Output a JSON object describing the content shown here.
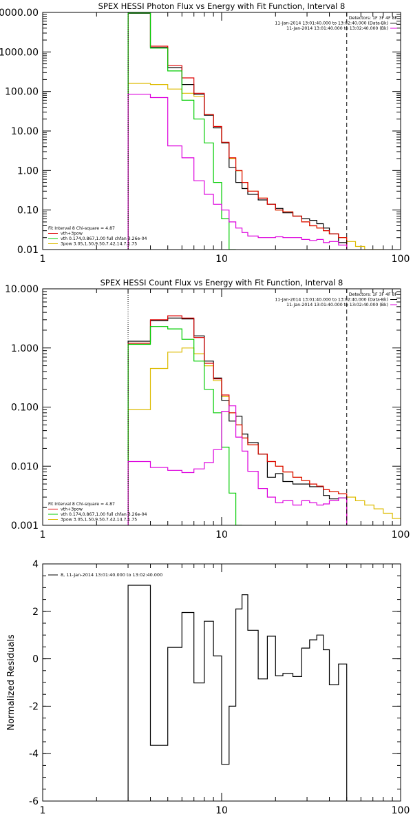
{
  "chart_data": [
    {
      "type": "line",
      "title": "SPEX HESSI Photon Flux vs Energy with Fit Function, Interval 8",
      "x_scale": "log",
      "y_scale": "log",
      "xlim": [
        1,
        100
      ],
      "ylim": [
        0.01,
        10000
      ],
      "x_ticks": [
        {
          "v": 1,
          "label": "1"
        },
        {
          "v": 10,
          "label": "10"
        },
        {
          "v": 100,
          "label": "100"
        }
      ],
      "y_ticks": [
        {
          "v": 0.01,
          "label": "0.01"
        },
        {
          "v": 0.1,
          "label": "0.10"
        },
        {
          "v": 1,
          "label": "1.00"
        },
        {
          "v": 10,
          "label": "10.00"
        },
        {
          "v": 100,
          "label": "100.00"
        },
        {
          "v": 1000,
          "label": "1000.00"
        },
        {
          "v": 10000,
          "label": "10000.00"
        }
      ],
      "top_legend": [
        {
          "text": "Detectors: 1F 3F 4F 8F",
          "color": "#000000"
        },
        {
          "text": "11-Jan-2014 13:01:40.000 to 13:02:40.000 (Data-Bk)",
          "color": "#000000"
        },
        {
          "text": "11-Jan-2014 13:01:40.000 to 13:02:40.000 (Bk)",
          "color": "#dd00dd"
        }
      ],
      "fit_legend": [
        {
          "text": "Fit Interval 8   Chi-square = 4.87",
          "color": "#000000"
        },
        {
          "text": "vth+3pow",
          "color": "#dd0000"
        },
        {
          "text": "vth 0.174,0.867,1.00  full chfan 3.26e-04",
          "color": "#00cc00"
        },
        {
          "text": "3pow 3.05,1.50,9.50,7.42,14.7,1.75",
          "color": "#ddbb00"
        }
      ],
      "vlines": [
        {
          "x": 3.0,
          "style": "dotted"
        },
        {
          "x": 50,
          "style": "dashed"
        }
      ],
      "edges": [
        3,
        4,
        5,
        6,
        7,
        8,
        9,
        10,
        11,
        12,
        13,
        14,
        16,
        18,
        20,
        22,
        25,
        28,
        31,
        34,
        37,
        40,
        45,
        50,
        56,
        63,
        71,
        80
      ],
      "series": [
        {
          "color": "#ddbb00",
          "values": [
            160,
            150,
            115,
            90,
            75,
            26,
            13,
            5,
            2.0,
            0.98,
            0.5,
            0.3,
            0.2,
            0.14,
            0.1,
            0.09,
            0.07,
            0.05,
            0.04,
            0.035,
            0.03,
            0.025,
            0.02,
            0.016,
            0.012,
            0.01,
            0.01
          ]
        },
        {
          "color": "#000000",
          "values": [
            9500,
            1300,
            400,
            150,
            85,
            25,
            12,
            5,
            1.2,
            0.5,
            0.35,
            0.25,
            0.18,
            0.14,
            0.11,
            0.085,
            0.07,
            0.06,
            0.055,
            0.045,
            0.035,
            0.025,
            0.015,
            null,
            null,
            null,
            null
          ]
        },
        {
          "color": "#dd0000",
          "values": [
            9800,
            1400,
            450,
            220,
            90,
            26,
            13,
            5.2,
            2.1,
            1.0,
            0.5,
            0.3,
            0.2,
            0.14,
            0.1,
            0.09,
            0.07,
            0.05,
            0.04,
            0.035,
            0.03,
            0.025,
            0.02,
            null,
            null,
            null,
            null
          ]
        },
        {
          "color": "#00cc00",
          "values": [
            9700,
            1250,
            330,
            60,
            20,
            5,
            0.5,
            0.06,
            0.01,
            null,
            null,
            null,
            null,
            null,
            null,
            null,
            null,
            null,
            null,
            null,
            null,
            null,
            null,
            null,
            null,
            null,
            null
          ]
        },
        {
          "color": "#dd00dd",
          "values": [
            85,
            70,
            4.2,
            2.1,
            0.55,
            0.25,
            0.14,
            0.1,
            0.05,
            0.035,
            0.027,
            0.022,
            0.02,
            0.02,
            0.021,
            0.02,
            0.02,
            0.018,
            0.017,
            0.018,
            0.015,
            0.016,
            0.013,
            null,
            null,
            null,
            null
          ]
        }
      ]
    },
    {
      "type": "line",
      "title": "SPEX HESSI Count Flux vs Energy with Fit Function, Interval 8",
      "x_scale": "log",
      "y_scale": "log",
      "xlim": [
        1,
        100
      ],
      "ylim": [
        0.001,
        10
      ],
      "x_ticks": [
        {
          "v": 1,
          "label": "1"
        },
        {
          "v": 10,
          "label": "10"
        },
        {
          "v": 100,
          "label": "100"
        }
      ],
      "y_ticks": [
        {
          "v": 0.001,
          "label": "0.001"
        },
        {
          "v": 0.01,
          "label": "0.010"
        },
        {
          "v": 0.1,
          "label": "0.100"
        },
        {
          "v": 1,
          "label": "1.000"
        },
        {
          "v": 10,
          "label": "10.000"
        }
      ],
      "top_legend": [
        {
          "text": "Detectors: 1F 3F 4F 8F",
          "color": "#000000"
        },
        {
          "text": "11-Jan-2014 13:01:40.000 to 13:02:40.000 (Data-Bk)",
          "color": "#000000"
        },
        {
          "text": "11-Jan-2014 13:01:40.000 to 13:02:40.000 (Bk)",
          "color": "#dd00dd"
        }
      ],
      "fit_legend": [
        {
          "text": "Fit Interval 8   Chi-square = 4.87",
          "color": "#000000"
        },
        {
          "text": "vth+3pow",
          "color": "#dd0000"
        },
        {
          "text": "vth 0.174,0.867,1.00  full chfan 3.26e-04",
          "color": "#00cc00"
        },
        {
          "text": "3pow 3.05,1.50,9.50,7.42,14.7,1.75",
          "color": "#ddbb00"
        }
      ],
      "vlines": [
        {
          "x": 3.0,
          "style": "dotted"
        },
        {
          "x": 50,
          "style": "dashed"
        }
      ],
      "edges": [
        3,
        4,
        5,
        6,
        7,
        8,
        9,
        10,
        11,
        12,
        13,
        14,
        16,
        18,
        20,
        22,
        25,
        28,
        31,
        34,
        37,
        40,
        45,
        50,
        56,
        63,
        71,
        80,
        90,
        100
      ],
      "series": [
        {
          "color": "#ddbb00",
          "values": [
            0.09,
            0.45,
            0.85,
            1.0,
            0.8,
            0.5,
            0.28,
            0.15,
            0.08,
            0.05,
            0.03,
            0.023,
            0.016,
            0.012,
            0.01,
            0.008,
            0.0065,
            0.0057,
            0.005,
            0.0046,
            0.004,
            0.0037,
            0.0034,
            0.003,
            0.0026,
            0.0022,
            0.0019,
            0.0016,
            0.0013
          ]
        },
        {
          "color": "#000000",
          "values": [
            1.3,
            2.9,
            3.2,
            3.1,
            1.6,
            0.6,
            0.31,
            0.13,
            0.058,
            0.07,
            0.035,
            0.025,
            0.016,
            0.0065,
            0.0075,
            0.0055,
            0.005,
            0.005,
            0.0045,
            0.0045,
            0.0032,
            0.0028,
            0.0029,
            null,
            null,
            null,
            null,
            null,
            null
          ]
        },
        {
          "color": "#dd0000",
          "values": [
            1.2,
            3.0,
            3.5,
            3.2,
            1.5,
            0.55,
            0.3,
            0.16,
            0.08,
            0.05,
            0.03,
            0.023,
            0.016,
            0.012,
            0.01,
            0.008,
            0.0065,
            0.0057,
            0.005,
            0.0046,
            0.004,
            0.0037,
            0.0034,
            null,
            null,
            null,
            null,
            null,
            null
          ]
        },
        {
          "color": "#00cc00",
          "values": [
            1.15,
            2.3,
            2.1,
            1.4,
            0.6,
            0.2,
            0.08,
            0.021,
            0.0035,
            0.00095,
            null,
            null,
            null,
            null,
            null,
            null,
            null,
            null,
            null,
            null,
            null,
            null,
            null,
            null,
            null,
            null,
            null,
            null,
            null
          ]
        },
        {
          "color": "#dd00dd",
          "values": [
            0.012,
            0.0095,
            0.0085,
            0.0078,
            0.009,
            0.0115,
            0.019,
            0.085,
            0.105,
            0.031,
            0.018,
            0.0082,
            0.0042,
            0.003,
            0.0024,
            0.0026,
            0.0022,
            0.0026,
            0.0024,
            0.0022,
            0.0023,
            0.0026,
            0.0029,
            null,
            null,
            null,
            null,
            null,
            null
          ]
        }
      ]
    },
    {
      "type": "line",
      "title": "",
      "ylabel": "Normalized Residuals",
      "x_scale": "log",
      "y_scale": "linear",
      "xlim": [
        1,
        100
      ],
      "ylim": [
        -6,
        4
      ],
      "x_ticks": [
        {
          "v": 1,
          "label": "1"
        },
        {
          "v": 10,
          "label": "10"
        },
        {
          "v": 100,
          "label": "100"
        }
      ],
      "y_ticks": [
        {
          "v": -6,
          "label": "-6"
        },
        {
          "v": -4,
          "label": "-4"
        },
        {
          "v": -2,
          "label": "-2"
        },
        {
          "v": 0,
          "label": "0"
        },
        {
          "v": 2,
          "label": "2"
        },
        {
          "v": 4,
          "label": "4"
        }
      ],
      "legend": [
        {
          "text": "8, 11-Jan-2014 13:01:40.000 to 13:02:40.000",
          "color": "#000000"
        }
      ],
      "edges": [
        3,
        4,
        5,
        6,
        7,
        8,
        9,
        10,
        11,
        12,
        13,
        14,
        16,
        18,
        20,
        22,
        25,
        28,
        31,
        34,
        37,
        40,
        45,
        50
      ],
      "series": [
        {
          "color": "#000000",
          "values": [
            3.1,
            -3.65,
            0.48,
            1.95,
            -1.02,
            1.58,
            0.12,
            -4.45,
            -2.0,
            2.1,
            2.7,
            1.2,
            -0.85,
            0.95,
            -0.72,
            -0.62,
            -0.75,
            0.45,
            0.8,
            1.0,
            0.38,
            -1.1,
            -0.22
          ]
        }
      ]
    }
  ]
}
